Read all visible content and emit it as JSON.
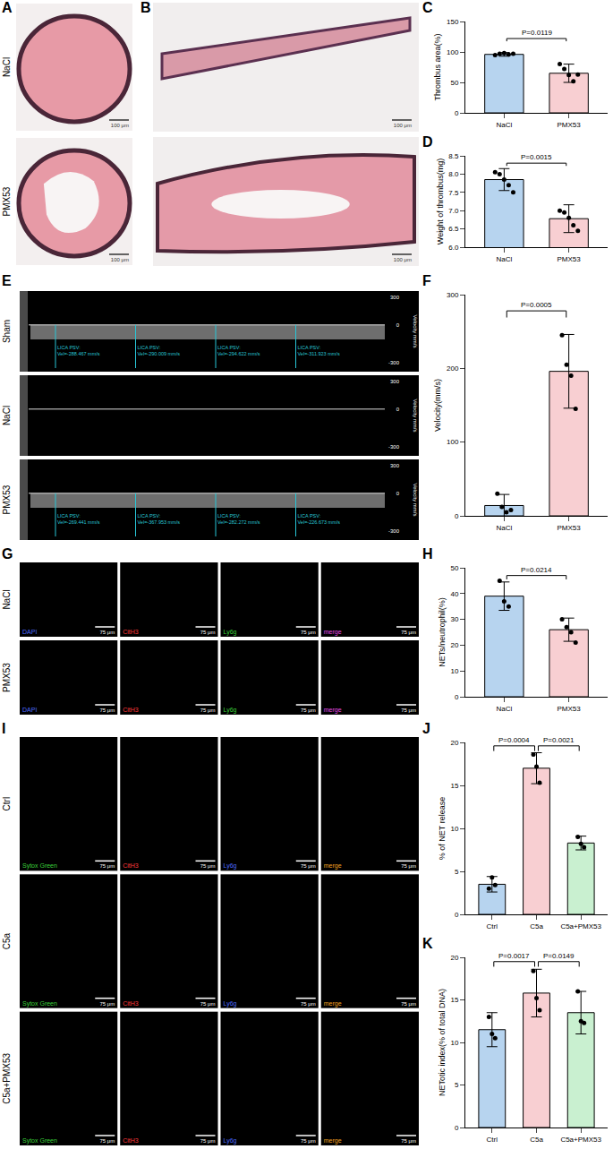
{
  "images": [
    {
      "panel": "A",
      "type": "histology_cross",
      "rows": [
        "NaCl",
        "PMX53"
      ],
      "scale_bar": "100 μm"
    },
    {
      "panel": "B",
      "type": "histology_long",
      "scale_bar": "100 μm"
    },
    {
      "panel": "E",
      "type": "ultrasound",
      "axis_title": "Velocity mm/s",
      "axis_ticks": [
        "300",
        "0",
        "-300"
      ],
      "rows": [
        {
          "label": "Sham",
          "marks": [
            [
              "LICA PSV:",
              "Vel=-288.467 mm/s"
            ],
            [
              "LICA PSV:",
              "Vel=-290.009 mm/s"
            ],
            [
              "LICA PSV:",
              "Vel=-294.622 mm/s"
            ],
            [
              "LICA PSV:",
              "Vel=-311.923 mm/s"
            ]
          ]
        },
        {
          "label": "NaCl",
          "marks": []
        },
        {
          "label": "PMX53",
          "marks": [
            [
              "LICA PSV:",
              "Vel=-269.441 mm/s"
            ],
            [
              "LICA PSV:",
              "Vel=-367.953 mm/s"
            ],
            [
              "LICA PSV:",
              "Vel=-282.272 mm/s"
            ],
            [
              "LICA PSV:",
              "Vel=-226.673 mm/s"
            ]
          ]
        }
      ]
    },
    {
      "panel": "G",
      "type": "fluorescence",
      "rows": [
        "NaCl",
        "PMX53"
      ],
      "scale_bar": "75 μm",
      "channels": [
        {
          "label": "DAPI",
          "color": "#4d6bff"
        },
        {
          "label": "CitH3",
          "color": "#ff3b3b"
        },
        {
          "label": "Ly6g",
          "color": "#3bd13b"
        },
        {
          "label": "merge",
          "color": "#e64de6"
        }
      ]
    },
    {
      "panel": "I",
      "type": "fluorescence",
      "rows": [
        "Ctrl",
        "C5a",
        "C5a+PMX53"
      ],
      "scale_bar": "75 μm",
      "channels": [
        {
          "label": "Sytox Green",
          "color": "#3bd13b"
        },
        {
          "label": "CitH3",
          "color": "#ff3b3b"
        },
        {
          "label": "Ly6g",
          "color": "#4d6bff"
        },
        {
          "label": "merge",
          "color": "#f0a020"
        }
      ]
    }
  ],
  "chart_data": [
    {
      "panel": "C",
      "type": "bar",
      "y_label": "Thrombus area(%)",
      "categories": [
        "NaCl",
        "PMX53"
      ],
      "values": [
        96,
        65
      ],
      "errors": [
        3,
        15
      ],
      "points": [
        [
          95,
          97,
          98,
          96,
          97
        ],
        [
          80,
          72,
          62,
          52,
          63
        ]
      ],
      "colors": [
        "#b7d4ef",
        "#f8cfd2"
      ],
      "ylim": [
        0,
        150
      ],
      "yticks": [
        0,
        50,
        100,
        150
      ],
      "comparisons": [
        {
          "text": "P=0.0119",
          "from": "NaCl",
          "to": "PMX53",
          "y": 122
        }
      ]
    },
    {
      "panel": "D",
      "type": "bar",
      "y_label": "Weight of thrombus(mg)",
      "categories": [
        "NaCl",
        "PMX53"
      ],
      "values": [
        7.85,
        6.78
      ],
      "errors": [
        0.3,
        0.38
      ],
      "points": [
        [
          8.05,
          8.0,
          7.85,
          7.7,
          7.5
        ],
        [
          7.0,
          6.95,
          6.8,
          6.6,
          6.45
        ]
      ],
      "colors": [
        "#b7d4ef",
        "#f8cfd2"
      ],
      "ylim": [
        6,
        8.5
      ],
      "yticks": [
        {
          "value": 6,
          "label": "6.0"
        },
        {
          "value": 6.5,
          "label": "6.5"
        },
        {
          "value": 7,
          "label": "7.0"
        },
        {
          "value": 7.5,
          "label": "7.5"
        },
        {
          "value": 8,
          "label": "8.0"
        },
        {
          "value": 8.5,
          "label": "8.5"
        }
      ],
      "comparisons": [
        {
          "text": "P=0.0015",
          "from": "NaCl",
          "to": "PMX53",
          "y": 8.3
        }
      ]
    },
    {
      "panel": "F",
      "type": "bar",
      "y_label": "Velocity(mm/s)",
      "categories": [
        "NaCl",
        "PMX53"
      ],
      "values": [
        14,
        196
      ],
      "errors": [
        15,
        50
      ],
      "points": [
        [
          30,
          12,
          5,
          8
        ],
        [
          245,
          205,
          190,
          145
        ]
      ],
      "colors": [
        "#b7d4ef",
        "#f8cfd2"
      ],
      "ylim": [
        0,
        300
      ],
      "yticks": [
        0,
        100,
        200,
        300
      ],
      "comparisons": [
        {
          "text": "P=0.0005",
          "from": "NaCl",
          "to": "PMX53",
          "y": 278
        }
      ]
    },
    {
      "panel": "H",
      "type": "bar",
      "y_label": "NETs/neutrophil(%)",
      "categories": [
        "NaCl",
        "PMX53"
      ],
      "values": [
        39,
        26
      ],
      "errors": [
        5.5,
        4.5
      ],
      "points": [
        [
          45,
          37,
          35
        ],
        [
          30,
          27,
          25,
          21
        ]
      ],
      "colors": [
        "#b7d4ef",
        "#f8cfd2"
      ],
      "ylim": [
        0,
        50
      ],
      "yticks": [
        0,
        10,
        20,
        30,
        40,
        50
      ],
      "comparisons": [
        {
          "text": "P=0.0214",
          "from": "NaCl",
          "to": "PMX53",
          "y": 47
        }
      ]
    },
    {
      "panel": "J",
      "type": "bar",
      "y_label": "% of NET release",
      "categories": [
        "Ctrl",
        "C5a",
        "C5a+PMX53"
      ],
      "values": [
        3.5,
        17,
        8.3
      ],
      "errors": [
        0.9,
        1.8,
        0.8
      ],
      "points": [
        [
          3,
          4.3,
          3.4
        ],
        [
          18.6,
          17.2,
          15.3
        ],
        [
          9,
          8.2,
          7.8
        ]
      ],
      "colors": [
        "#b7d4ef",
        "#f8cfd2",
        "#c9f0d0"
      ],
      "ylim": [
        0,
        20
      ],
      "yticks": [
        0,
        5,
        10,
        15,
        20
      ],
      "comparisons": [
        {
          "text": "P=0.0004",
          "from": "Ctrl",
          "to": "C5a",
          "y": 19.6
        },
        {
          "text": "P=0.0021",
          "from": "C5a",
          "to": "C5a+PMX53",
          "y": 19.6
        }
      ]
    },
    {
      "panel": "K",
      "type": "bar",
      "y_label": "NETotic index(% of total DNA)",
      "categories": [
        "Ctrl",
        "C5a",
        "C5a+PMX53"
      ],
      "values": [
        11.5,
        15.8,
        13.5
      ],
      "errors": [
        2,
        2.8,
        2.5
      ],
      "points": [
        [
          13,
          11,
          10.5
        ],
        [
          18.4,
          15.2,
          13.8
        ],
        [
          16,
          12.5,
          12.3
        ]
      ],
      "colors": [
        "#b7d4ef",
        "#f8cfd2",
        "#c9f0d0"
      ],
      "ylim": [
        0,
        20
      ],
      "yticks": [
        0,
        5,
        10,
        15,
        20
      ],
      "comparisons": [
        {
          "text": "P=0.0017",
          "from": "Ctrl",
          "to": "C5a",
          "y": 19.5
        },
        {
          "text": "P=0.0149",
          "from": "C5a",
          "to": "C5a+PMX53",
          "y": 19.5
        }
      ]
    }
  ]
}
